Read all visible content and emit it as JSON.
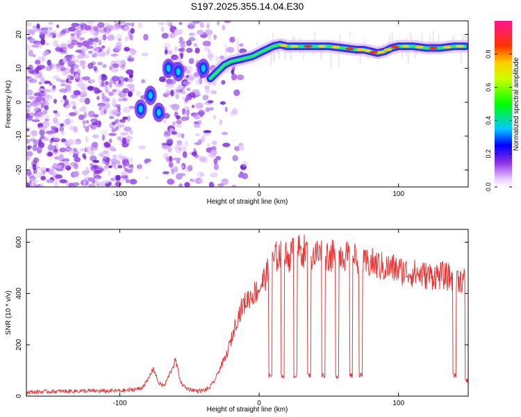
{
  "title": "S197.2025.355.14.04.E30",
  "chart_data": [
    {
      "type": "heatmap",
      "name": "spectrogram",
      "xlabel": "Height of straight line (km)",
      "ylabel": "Frequency (Hz)",
      "xlim": [
        -167,
        150
      ],
      "ylim": [
        -25,
        24
      ],
      "xticks": [
        "-100",
        "0",
        "100"
      ],
      "yticks": [
        "-20",
        "-10",
        "0",
        "10",
        "20"
      ],
      "colorbar": {
        "label": "Normalized spectral amplitude",
        "range": [
          0.0,
          1.0
        ],
        "ticks": [
          "0.0",
          "0.2",
          "0.4",
          "0.6",
          "0.8"
        ]
      },
      "ridge": {
        "x": [
          -35,
          -30,
          -25,
          -20,
          -15,
          -10,
          -5,
          0,
          5,
          10,
          15,
          20,
          30,
          40,
          50,
          60,
          70,
          75,
          80,
          85,
          90,
          95,
          100,
          110,
          120,
          130,
          140,
          148
        ],
        "frequency": [
          7,
          9,
          11,
          12,
          12.5,
          13,
          13.5,
          14.5,
          15.5,
          16.5,
          17,
          16.5,
          16.5,
          16.5,
          16.5,
          16,
          15.5,
          15.5,
          15,
          14.5,
          15,
          16,
          16.5,
          16.5,
          16,
          16,
          16.5,
          16.5
        ]
      },
      "blobs": [
        {
          "x": -85,
          "frequency": -2
        },
        {
          "x": -78,
          "frequency": 2
        },
        {
          "x": -72,
          "frequency": -3
        },
        {
          "x": -65,
          "frequency": 10
        },
        {
          "x": -58,
          "frequency": 9
        },
        {
          "x": -40,
          "frequency": 10
        }
      ]
    },
    {
      "type": "line",
      "name": "snr",
      "xlabel": "Height of straight line (km)",
      "ylabel": "SNR (10 * v/v)",
      "xlim": [
        -167,
        150
      ],
      "ylim": [
        0,
        650
      ],
      "xticks": [
        "-100",
        "0",
        "100"
      ],
      "yticks": [
        "0",
        "200",
        "400",
        "600"
      ],
      "series": [
        {
          "name": "SNR",
          "color": "#ee3333",
          "x": [
            -167,
            -150,
            -130,
            -110,
            -95,
            -85,
            -80,
            -76,
            -72,
            -68,
            -64,
            -60,
            -56,
            -52,
            -48,
            -44,
            -40,
            -36,
            -32,
            -28,
            -24,
            -20,
            -16,
            -12,
            -8,
            -4,
            0,
            4,
            8,
            12,
            16,
            20,
            25,
            30,
            35,
            40,
            45,
            50,
            55,
            60,
            65,
            70,
            75,
            80,
            85,
            90,
            95,
            100,
            110,
            120,
            130,
            140,
            150
          ],
          "values": [
            15,
            18,
            20,
            20,
            22,
            30,
            60,
            110,
            50,
            40,
            90,
            140,
            50,
            30,
            25,
            20,
            22,
            30,
            60,
            110,
            150,
            220,
            300,
            350,
            380,
            400,
            420,
            460,
            500,
            540,
            560,
            540,
            560,
            570,
            560,
            550,
            560,
            550,
            540,
            560,
            530,
            540,
            510,
            520,
            510,
            500,
            500,
            490,
            480,
            470,
            470,
            460,
            450
          ]
        }
      ],
      "dropouts": {
        "x": [
          8,
          17,
          26,
          36,
          46,
          56,
          66,
          73,
          140,
          149
        ],
        "values": [
          80,
          80,
          80,
          80,
          80,
          80,
          80,
          80,
          80,
          60
        ]
      }
    }
  ]
}
